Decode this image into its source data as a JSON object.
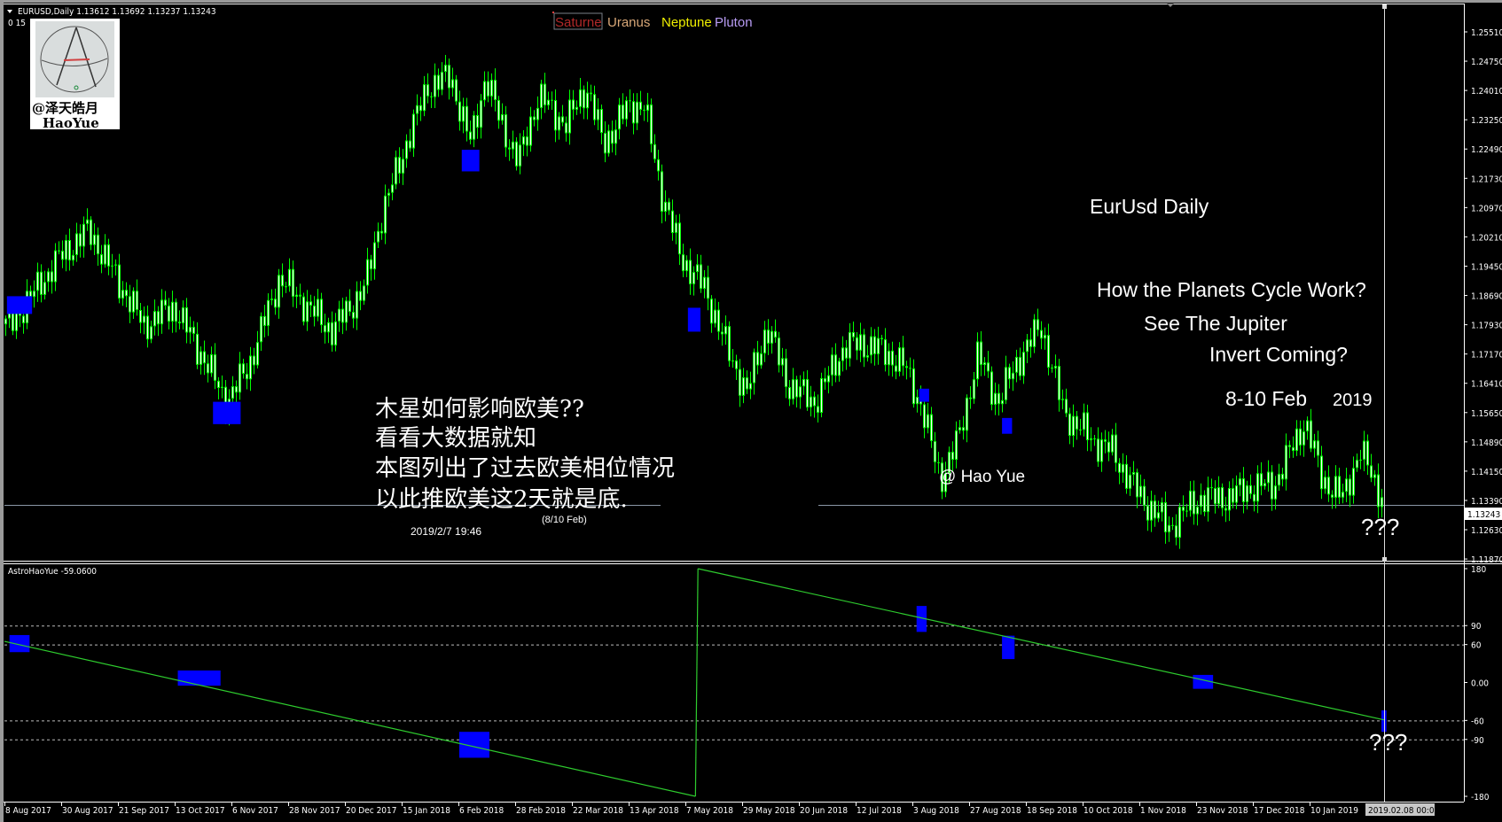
{
  "header": {
    "symbol_line": "EURUSD,Daily  1.13612 1.13692 1.13237 1.13243",
    "sub_line": "0  15"
  },
  "logo": {
    "line1": "@泽天皓月",
    "line2": "HaoYue"
  },
  "legend": [
    {
      "label": "Saturne",
      "color": "#b02828"
    },
    {
      "label": "Uranus",
      "color": "#d9a878"
    },
    {
      "label": "Neptune",
      "color": "#f0f000"
    },
    {
      "label": "Pluton",
      "color": "#b89cf4"
    }
  ],
  "annotations": {
    "title": "EurUsd Daily",
    "q1": "How the Planets Cycle Work?",
    "q2": "See The Jupiter",
    "q3": "Invert Coming?",
    "date_main": "8-10 Feb",
    "date_year": "2019",
    "author": "@ Hao Yue",
    "cn_lines": [
      "木星如何影响欧美??",
      "看看大数据就知",
      "本图列出了过去欧美相位情况",
      "以此推欧美这2天就是底."
    ],
    "note_date": "(8/10 Feb)",
    "timestamp": "2019/2/7 19:46",
    "question_main": "???",
    "question_indicator": "???"
  },
  "indicator": {
    "label": "AstroHaoYue -59.0600"
  },
  "cursor": {
    "time_label": "2019.02.08 00:00"
  },
  "current_price_label": "1.13243",
  "colors": {
    "candle": "#00ff00",
    "candle_body": "#ffffff",
    "marker": "#0000ff",
    "indicator_line": "#2ecc2e",
    "background": "#000000"
  },
  "chart_data": [
    {
      "type": "candlestick",
      "title": "EURUSD,Daily",
      "current_price": 1.13243,
      "y_ticks": [
        "1.25510",
        "1.24750",
        "1.24010",
        "1.23250",
        "1.22490",
        "1.21730",
        "1.20970",
        "1.20210",
        "1.19450",
        "1.18690",
        "1.17930",
        "1.17170",
        "1.16410",
        "1.15650",
        "1.14890",
        "1.14150",
        "1.13390",
        "1.12630",
        "1.11870"
      ],
      "ylim": [
        1.1187,
        1.2551
      ],
      "x_ticks": [
        "8 Aug 2017",
        "30 Aug 2017",
        "21 Sep 2017",
        "13 Oct 2017",
        "6 Nov 2017",
        "28 Nov 2017",
        "20 Dec 2017",
        "15 Jan 2018",
        "6 Feb 2018",
        "28 Feb 2018",
        "22 Mar 2018",
        "13 Apr 2018",
        "7 May 2018",
        "29 May 2018",
        "20 Jun 2018",
        "12 Jul 2018",
        "3 Aug 2018",
        "27 Aug 2018",
        "18 Sep 2018",
        "10 Oct 2018",
        "1 Nov 2018",
        "23 Nov 2018",
        "17 Dec 2018",
        "10 Jan 2019"
      ],
      "xlim": [
        "2017-08-08",
        "2019-02-08"
      ],
      "approx_close": [
        [
          "2017-08-10",
          1.1792
        ],
        [
          "2017-08-29",
          1.1962
        ],
        [
          "2017-09-10",
          1.2037
        ],
        [
          "2017-09-21",
          1.1913
        ],
        [
          "2017-10-02",
          1.1789
        ],
        [
          "2017-10-14",
          1.1838
        ],
        [
          "2017-10-27",
          1.1689
        ],
        [
          "2017-11-04",
          1.1589
        ],
        [
          "2017-11-13",
          1.1689
        ],
        [
          "2017-11-25",
          1.1913
        ],
        [
          "2017-12-06",
          1.1838
        ],
        [
          "2017-12-16",
          1.1776
        ],
        [
          "2017-12-29",
          1.1888
        ],
        [
          "2018-01-04",
          1.2062
        ],
        [
          "2018-01-13",
          1.2236
        ],
        [
          "2018-01-23",
          1.241
        ],
        [
          "2018-02-01",
          1.2435
        ],
        [
          "2018-02-09",
          1.2261
        ],
        [
          "2018-02-15",
          1.2435
        ],
        [
          "2018-02-20",
          1.2335
        ],
        [
          "2018-02-28",
          1.2211
        ],
        [
          "2018-03-08",
          1.2385
        ],
        [
          "2018-03-19",
          1.2311
        ],
        [
          "2018-03-27",
          1.241
        ],
        [
          "2018-04-03",
          1.2261
        ],
        [
          "2018-04-13",
          1.236
        ],
        [
          "2018-04-19",
          1.236
        ],
        [
          "2018-04-26",
          1.2136
        ],
        [
          "2018-05-04",
          1.1962
        ],
        [
          "2018-05-13",
          1.1888
        ],
        [
          "2018-05-23",
          1.1714
        ],
        [
          "2018-05-30",
          1.1614
        ],
        [
          "2018-06-07",
          1.1789
        ],
        [
          "2018-06-15",
          1.1639
        ],
        [
          "2018-06-26",
          1.1589
        ],
        [
          "2018-07-08",
          1.1738
        ],
        [
          "2018-07-19",
          1.1738
        ],
        [
          "2018-07-31",
          1.1689
        ],
        [
          "2018-08-07",
          1.1589
        ],
        [
          "2018-08-15",
          1.139
        ],
        [
          "2018-08-22",
          1.149
        ],
        [
          "2018-08-30",
          1.1714
        ],
        [
          "2018-09-07",
          1.1589
        ],
        [
          "2018-09-14",
          1.1689
        ],
        [
          "2018-09-24",
          1.1789
        ],
        [
          "2018-10-03",
          1.1564
        ],
        [
          "2018-10-15",
          1.149
        ],
        [
          "2018-10-22",
          1.1465
        ],
        [
          "2018-11-03",
          1.1341
        ],
        [
          "2018-11-14",
          1.1266
        ],
        [
          "2018-11-26",
          1.1341
        ],
        [
          "2018-12-07",
          1.1341
        ],
        [
          "2018-12-15",
          1.1365
        ],
        [
          "2018-12-26",
          1.1378
        ],
        [
          "2019-01-07",
          1.154
        ],
        [
          "2019-01-14",
          1.139
        ],
        [
          "2019-01-22",
          1.1341
        ],
        [
          "2019-01-29",
          1.1465
        ],
        [
          "2019-02-08",
          1.13243
        ]
      ],
      "markers": [
        {
          "from": "2017-08-09",
          "to": "2017-08-19",
          "high": 1.1865,
          "low": 1.1819
        },
        {
          "from": "2017-10-30",
          "to": "2017-11-10",
          "high": 1.1591,
          "low": 1.1533
        },
        {
          "from": "2018-02-06",
          "to": "2018-02-13",
          "high": 1.2245,
          "low": 1.2189
        },
        {
          "from": "2018-05-07",
          "to": "2018-05-12",
          "high": 1.1835,
          "low": 1.1773
        },
        {
          "from": "2018-08-07",
          "to": "2018-08-11",
          "high": 1.1625,
          "low": 1.1591
        },
        {
          "from": "2018-09-09",
          "to": "2018-09-13",
          "high": 1.1549,
          "low": 1.1508
        }
      ]
    },
    {
      "type": "line",
      "series": [
        {
          "name": "AstroHaoYue",
          "points": [
            [
              "2017-08-08",
              65
            ],
            [
              "2018-05-10",
              -180
            ],
            [
              "2018-05-11",
              180
            ],
            [
              "2019-02-08",
              -59.06
            ]
          ]
        }
      ],
      "y_ticks": [
        "180",
        "90",
        "60",
        "0.00",
        "-60",
        "-90",
        "-180"
      ],
      "ylim": [
        -180,
        180
      ],
      "reference_lines": [
        90,
        60,
        -60,
        -90
      ],
      "markers": [
        {
          "from": "2017-08-10",
          "to": "2017-08-18",
          "high": 75,
          "low": 48
        },
        {
          "from": "2017-10-16",
          "to": "2017-11-02",
          "high": 19,
          "low": -5
        },
        {
          "from": "2018-02-05",
          "to": "2018-02-17",
          "high": -78,
          "low": -119
        },
        {
          "from": "2018-08-06",
          "to": "2018-08-10",
          "high": 121,
          "low": 80
        },
        {
          "from": "2018-09-09",
          "to": "2018-09-14",
          "high": 74,
          "low": 37
        },
        {
          "from": "2018-11-24",
          "to": "2018-12-02",
          "high": 12,
          "low": -10
        },
        {
          "from": "2019-02-07",
          "to": "2019-02-09",
          "high": -44,
          "low": -78
        }
      ]
    }
  ]
}
